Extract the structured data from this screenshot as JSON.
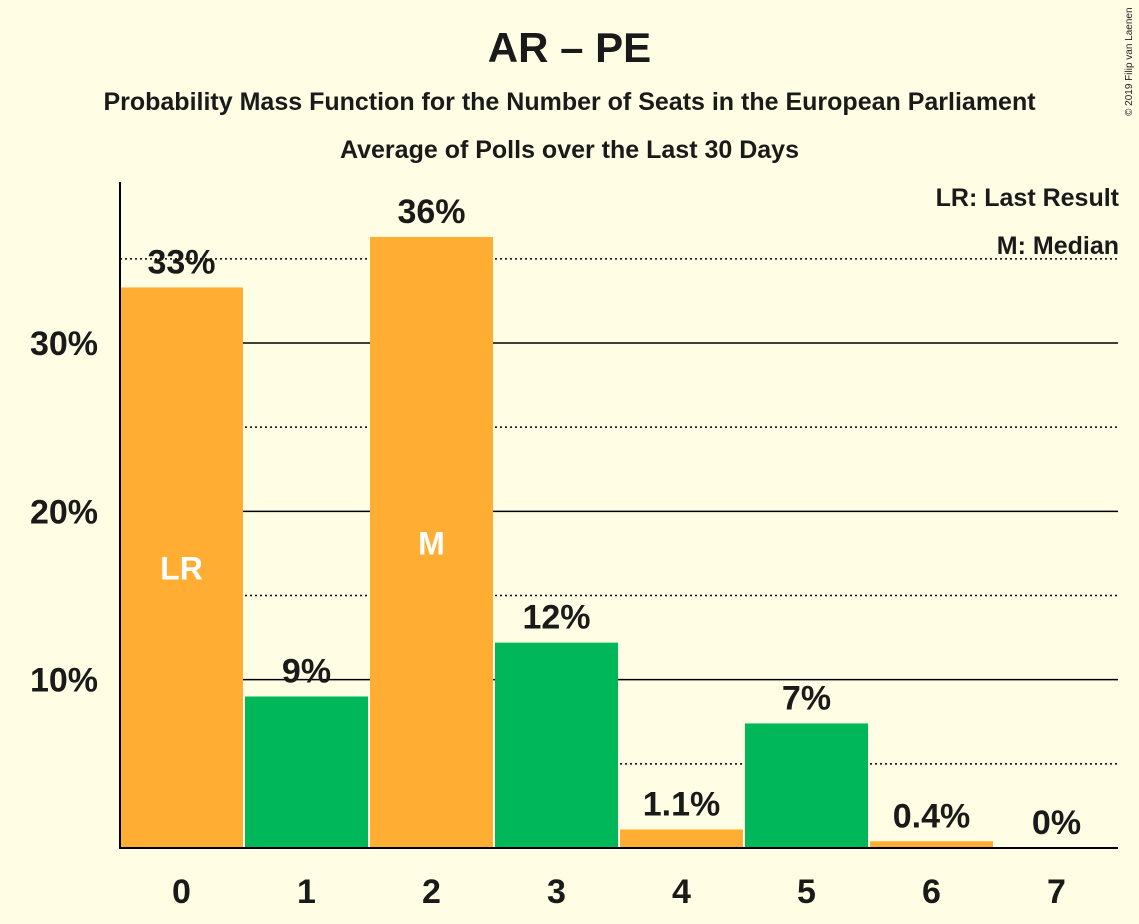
{
  "title": "AR – PE",
  "subtitle": "Probability Mass Function for the Number of Seats in the European Parliament",
  "subtitle2": "Average of Polls over the Last 30 Days",
  "copyright": "© 2019 Filip van Laenen",
  "legend": {
    "last_result": "LR: Last Result",
    "median": "M: Median"
  },
  "colors": {
    "background": "#FFFDE3",
    "orange": "#FFAE33",
    "green": "#00B759",
    "axis": "#000000"
  },
  "chart_data": {
    "type": "bar",
    "categories": [
      "0",
      "1",
      "2",
      "3",
      "4",
      "5",
      "6",
      "7"
    ],
    "values": [
      33.3,
      9.0,
      36.3,
      12.2,
      1.1,
      7.4,
      0.4,
      0.0
    ],
    "value_labels": [
      "33%",
      "9%",
      "36%",
      "12%",
      "1.1%",
      "7%",
      "0.4%",
      "0%"
    ],
    "bar_colors": [
      "orange",
      "green",
      "orange",
      "green",
      "orange",
      "green",
      "orange",
      "green"
    ],
    "bar_markers": [
      "LR",
      "",
      "M",
      "",
      "",
      "",
      "",
      ""
    ],
    "yticks": [
      10,
      20,
      30
    ],
    "ytick_labels": [
      "10%",
      "20%",
      "30%"
    ],
    "dotted_gridlines": [
      5,
      15,
      25,
      35
    ],
    "ylim": [
      0,
      39.5
    ],
    "legend_position": "top-right"
  }
}
